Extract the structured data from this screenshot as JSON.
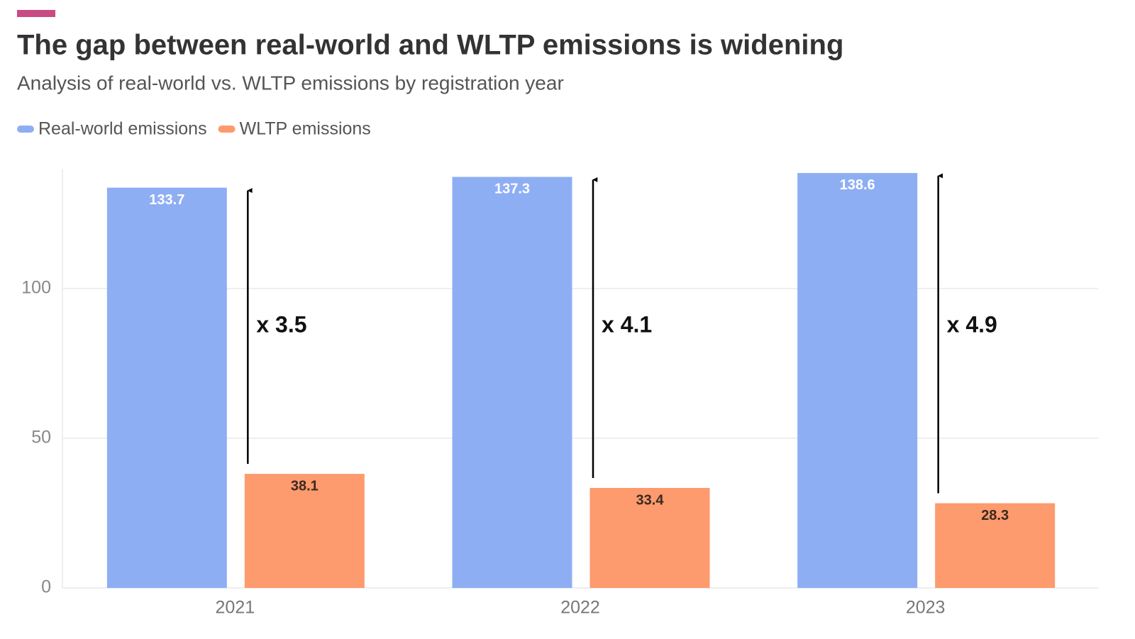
{
  "chart_data": {
    "type": "bar",
    "title": "The gap between real-world and WLTP emissions is widening",
    "subtitle": "Analysis of real-world vs. WLTP emissions by registration year",
    "categories": [
      "2021",
      "2022",
      "2023"
    ],
    "series": [
      {
        "name": "Real-world emissions",
        "color": "#8eaef4",
        "values": [
          133.7,
          137.3,
          138.6
        ]
      },
      {
        "name": "WLTP emissions",
        "color": "#fd9a6e",
        "values": [
          38.1,
          33.4,
          28.3
        ]
      }
    ],
    "annotations": [
      "x 3.5",
      "x 4.1",
      "x 4.9"
    ],
    "ylim": [
      0,
      140
    ],
    "yticks": [
      0,
      50,
      100
    ],
    "grid": true
  }
}
